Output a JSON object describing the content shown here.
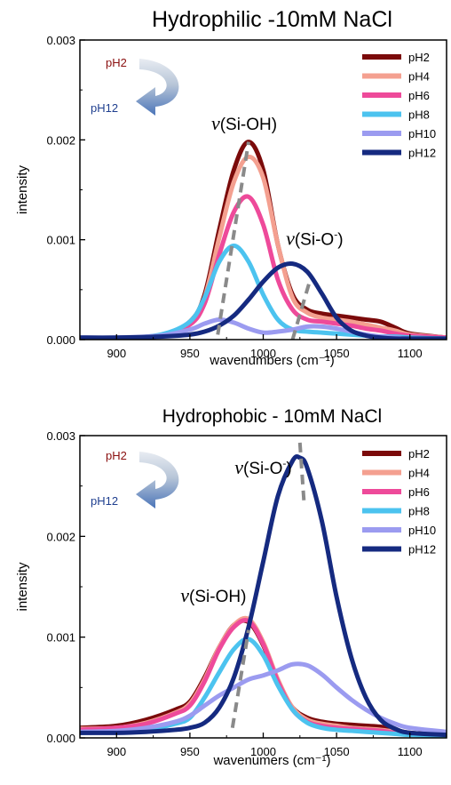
{
  "chart_data": [
    {
      "type": "line",
      "title": "Hydrophilic -10mM NaCl",
      "xlabel": "wavenumbers (cm⁻¹)",
      "ylabel": "intensity",
      "xlim": [
        875,
        1125
      ],
      "ylim": [
        0,
        0.003
      ],
      "xticks": [
        900,
        950,
        1000,
        1050,
        1100
      ],
      "yticks": [
        0.0,
        0.001,
        0.002,
        0.003
      ],
      "ytick_labels": [
        "0.000",
        "0.001",
        "0.002",
        "0.003"
      ],
      "legend_position": "top-right",
      "arrow": {
        "from": "pH2",
        "to": "pH12",
        "from_color": "#8b1010",
        "to_color": "#1f3f8f"
      },
      "annotations": [
        {
          "nu": "ν",
          "text": "(Si-OH)",
          "at": [
            987,
            0.0021
          ]
        },
        {
          "nu": "ν",
          "text": "(Si-O",
          "sup": "-",
          "close": ")",
          "at": [
            1035,
            0.00095
          ]
        }
      ],
      "dashed_guides": [
        {
          "from": [
            969,
            5e-05
          ],
          "to": [
            990,
            0.00198
          ]
        },
        {
          "from": [
            1020,
            0.0
          ],
          "to": [
            1032,
            0.0006
          ]
        }
      ],
      "series": [
        {
          "name": "pH2",
          "color": "#7b0a0a",
          "x": [
            875,
            900,
            930,
            950,
            960,
            970,
            980,
            990,
            1000,
            1010,
            1020,
            1030,
            1040,
            1050,
            1060,
            1070,
            1080,
            1090,
            1100,
            1125
          ],
          "y": [
            1e-05,
            1e-05,
            4e-05,
            0.00018,
            0.00045,
            0.0011,
            0.0017,
            0.00198,
            0.0017,
            0.00095,
            0.00045,
            0.0003,
            0.00026,
            0.00024,
            0.00022,
            0.0002,
            0.00018,
            0.00012,
            6e-05,
            2e-05
          ]
        },
        {
          "name": "pH4",
          "color": "#f4a090",
          "x": [
            875,
            900,
            930,
            950,
            960,
            970,
            980,
            990,
            1000,
            1010,
            1020,
            1030,
            1040,
            1050,
            1060,
            1070,
            1080,
            1090,
            1100,
            1125
          ],
          "y": [
            1e-05,
            1e-05,
            4e-05,
            0.00017,
            0.00042,
            0.00102,
            0.00158,
            0.00183,
            0.00162,
            0.00095,
            0.00042,
            0.00027,
            0.00022,
            0.0002,
            0.00018,
            0.00015,
            0.00012,
            9e-05,
            5e-05,
            2e-05
          ]
        },
        {
          "name": "pH6",
          "color": "#ee4a9a",
          "x": [
            875,
            900,
            930,
            950,
            960,
            970,
            980,
            990,
            1000,
            1010,
            1020,
            1030,
            1040,
            1050,
            1060,
            1070,
            1080,
            1090,
            1100,
            1125
          ],
          "y": [
            1e-05,
            1e-05,
            4e-05,
            0.00015,
            0.00036,
            0.00085,
            0.00128,
            0.00143,
            0.00115,
            0.0006,
            0.0003,
            0.0002,
            0.00018,
            0.00016,
            0.00014,
            0.00011,
            9e-05,
            6e-05,
            4e-05,
            2e-05
          ]
        },
        {
          "name": "pH8",
          "color": "#4cc3ef",
          "x": [
            875,
            900,
            930,
            950,
            960,
            970,
            980,
            990,
            1000,
            1010,
            1020,
            1030,
            1040,
            1050,
            1060,
            1070,
            1080,
            1090,
            1100,
            1125
          ],
          "y": [
            1e-05,
            1e-05,
            5e-05,
            0.00018,
            0.00042,
            0.00078,
            0.00094,
            0.00078,
            0.00045,
            0.0002,
            0.0001,
            8e-05,
            7e-05,
            6e-05,
            5e-05,
            4e-05,
            3e-05,
            3e-05,
            2e-05,
            1e-05
          ]
        },
        {
          "name": "pH10",
          "color": "#9b9bf0",
          "x": [
            875,
            900,
            930,
            950,
            960,
            970,
            980,
            990,
            1000,
            1010,
            1020,
            1030,
            1040,
            1050,
            1060,
            1070,
            1080,
            1090,
            1100,
            1125
          ],
          "y": [
            2e-05,
            2e-05,
            4e-05,
            0.0001,
            0.00016,
            0.0002,
            0.00017,
            0.00011,
            7e-05,
            8e-05,
            0.0001,
            0.00013,
            0.00013,
            0.00011,
            8e-05,
            5e-05,
            3e-05,
            2e-05,
            1e-05,
            1e-05
          ]
        },
        {
          "name": "pH12",
          "color": "#152a80",
          "x": [
            875,
            900,
            930,
            950,
            960,
            970,
            980,
            990,
            1000,
            1010,
            1020,
            1030,
            1040,
            1050,
            1060,
            1070,
            1080,
            1090,
            1100,
            1125
          ],
          "y": [
            2e-05,
            2e-05,
            3e-05,
            5e-05,
            8e-05,
            0.00014,
            0.00024,
            0.0004,
            0.00058,
            0.00072,
            0.00076,
            0.00068,
            0.00046,
            0.00022,
            9e-05,
            4e-05,
            2e-05,
            1e-05,
            1e-05,
            1e-05
          ]
        }
      ]
    },
    {
      "type": "line",
      "title": "Hydrophobic - 10mM NaCl",
      "xlabel": "wavenumers (cm⁻¹)",
      "ylabel": "intensity",
      "xlim": [
        875,
        1125
      ],
      "ylim": [
        0,
        0.003
      ],
      "xticks": [
        900,
        950,
        1000,
        1050,
        1100
      ],
      "yticks": [
        0.0,
        0.001,
        0.002,
        0.003
      ],
      "ytick_labels": [
        "0.000",
        "0.001",
        "0.002",
        "0.003"
      ],
      "legend_position": "top-right",
      "arrow": {
        "from": "pH2",
        "to": "pH12",
        "from_color": "#8b1010",
        "to_color": "#1f3f8f"
      },
      "annotations": [
        {
          "nu": "ν",
          "text": "(Si-O",
          "sup": "-",
          "close": ")",
          "at": [
            1000,
            0.00262
          ]
        },
        {
          "nu": "ν",
          "text": "(Si-OH)",
          "at": [
            966,
            0.00135
          ]
        }
      ],
      "dashed_guides": [
        {
          "from": [
            1025,
            0.00293
          ],
          "to": [
            1028,
            0.0023
          ]
        },
        {
          "from": [
            979,
            0.0001
          ],
          "to": [
            990,
            0.00107
          ]
        }
      ],
      "series": [
        {
          "name": "pH2",
          "color": "#7b0a0a",
          "x": [
            875,
            900,
            920,
            940,
            950,
            960,
            970,
            980,
            990,
            1000,
            1010,
            1020,
            1030,
            1040,
            1050,
            1060,
            1070,
            1080,
            1090,
            1100,
            1125
          ],
          "y": [
            0.0001,
            0.00012,
            0.00018,
            0.00028,
            0.00036,
            0.0006,
            0.0009,
            0.00112,
            0.00115,
            0.00092,
            0.00055,
            0.0003,
            0.0002,
            0.00016,
            0.00014,
            0.00013,
            0.00012,
            0.00011,
            8e-05,
            5e-05,
            3e-05
          ]
        },
        {
          "name": "pH4",
          "color": "#f4a090",
          "x": [
            875,
            900,
            920,
            940,
            950,
            960,
            970,
            980,
            990,
            1000,
            1010,
            1020,
            1030,
            1040,
            1050,
            1060,
            1070,
            1080,
            1090,
            1100,
            1125
          ],
          "y": [
            9e-05,
            0.0001,
            0.00015,
            0.00025,
            0.00034,
            0.00058,
            0.0009,
            0.00112,
            0.00118,
            0.00095,
            0.00058,
            0.0003,
            0.00018,
            0.00014,
            0.00012,
            0.0001,
            9e-05,
            8e-05,
            6e-05,
            4e-05,
            3e-05
          ]
        },
        {
          "name": "pH6",
          "color": "#ee4a9a",
          "x": [
            875,
            900,
            920,
            940,
            950,
            960,
            970,
            980,
            990,
            1000,
            1010,
            1020,
            1030,
            1040,
            1050,
            1060,
            1070,
            1080,
            1090,
            1100,
            1125
          ],
          "y": [
            8e-05,
            0.0001,
            0.00014,
            0.00024,
            0.00032,
            0.00056,
            0.00088,
            0.0011,
            0.00116,
            0.00093,
            0.00056,
            0.00028,
            0.00016,
            0.00012,
            0.0001,
            9e-05,
            8e-05,
            7e-05,
            5e-05,
            4e-05,
            2e-05
          ]
        },
        {
          "name": "pH8",
          "color": "#4cc3ef",
          "x": [
            875,
            900,
            920,
            940,
            950,
            960,
            970,
            980,
            990,
            1000,
            1010,
            1020,
            1030,
            1040,
            1050,
            1060,
            1070,
            1080,
            1090,
            1100,
            1125
          ],
          "y": [
            5e-05,
            6e-05,
            8e-05,
            0.00014,
            0.0002,
            0.0004,
            0.00065,
            0.00088,
            0.00098,
            0.00082,
            0.00052,
            0.00028,
            0.00015,
            0.0001,
            8e-05,
            7e-05,
            6e-05,
            5e-05,
            4e-05,
            3e-05,
            2e-05
          ]
        },
        {
          "name": "pH10",
          "color": "#9b9bf0",
          "x": [
            875,
            900,
            920,
            940,
            950,
            960,
            970,
            980,
            990,
            1000,
            1010,
            1020,
            1030,
            1040,
            1050,
            1060,
            1070,
            1080,
            1090,
            1100,
            1125
          ],
          "y": [
            6e-05,
            7e-05,
            0.0001,
            0.00016,
            0.00022,
            0.00032,
            0.00042,
            0.0005,
            0.00058,
            0.00062,
            0.00067,
            0.00073,
            0.00072,
            0.00063,
            0.0005,
            0.00038,
            0.00028,
            0.0002,
            0.00014,
            0.0001,
            6e-05
          ]
        },
        {
          "name": "pH12",
          "color": "#152a80",
          "x": [
            875,
            900,
            920,
            940,
            950,
            960,
            970,
            980,
            990,
            1000,
            1010,
            1020,
            1025,
            1030,
            1040,
            1050,
            1060,
            1070,
            1080,
            1090,
            1100,
            1125
          ],
          "y": [
            5e-05,
            5e-05,
            6e-05,
            8e-05,
            0.0001,
            0.00015,
            0.0003,
            0.0006,
            0.0011,
            0.00175,
            0.0024,
            0.00275,
            0.00278,
            0.00268,
            0.00215,
            0.0014,
            0.0008,
            0.0004,
            0.00018,
            9e-05,
            5e-05,
            3e-05
          ]
        }
      ]
    }
  ]
}
